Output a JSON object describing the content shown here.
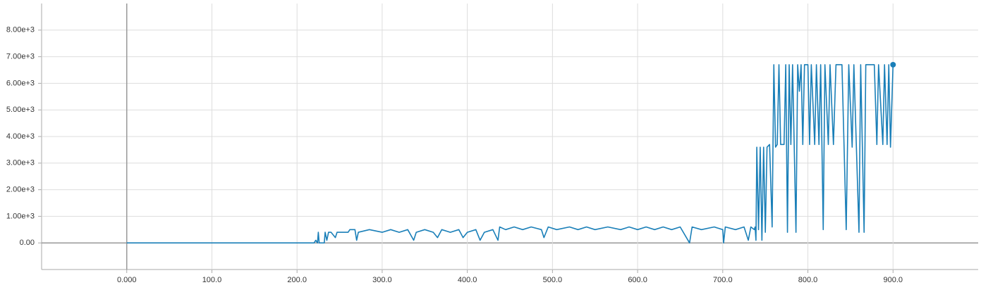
{
  "chart_data": {
    "type": "line",
    "color": "#1a7fb8",
    "grid": true,
    "xlim": [
      -100,
      1000
    ],
    "ylim": [
      -1000,
      9000
    ],
    "xticks": [
      {
        "value": 0,
        "label": "0.000"
      },
      {
        "value": 100,
        "label": "100.0"
      },
      {
        "value": 200,
        "label": "200.0"
      },
      {
        "value": 300,
        "label": "300.0"
      },
      {
        "value": 400,
        "label": "400.0"
      },
      {
        "value": 500,
        "label": "500.0"
      },
      {
        "value": 600,
        "label": "600.0"
      },
      {
        "value": 700,
        "label": "700.0"
      },
      {
        "value": 800,
        "label": "800.0"
      },
      {
        "value": 900,
        "label": "900.0"
      }
    ],
    "yticks": [
      {
        "value": 0,
        "label": "0.00"
      },
      {
        "value": 1000,
        "label": "1.00e+3"
      },
      {
        "value": 2000,
        "label": "2.00e+3"
      },
      {
        "value": 3000,
        "label": "3.00e+3"
      },
      {
        "value": 4000,
        "label": "4.00e+3"
      },
      {
        "value": 5000,
        "label": "5.00e+3"
      },
      {
        "value": 6000,
        "label": "6.00e+3"
      },
      {
        "value": 7000,
        "label": "7.00e+3"
      },
      {
        "value": 8000,
        "label": "8.00e+3"
      }
    ],
    "x": [
      0,
      220,
      222,
      224,
      225,
      226,
      232,
      233,
      235,
      237,
      240,
      245,
      247,
      260,
      262,
      268,
      270,
      272,
      285,
      300,
      310,
      320,
      330,
      337,
      340,
      350,
      360,
      365,
      370,
      380,
      390,
      395,
      400,
      410,
      415,
      420,
      430,
      436,
      438,
      445,
      455,
      465,
      475,
      487,
      490,
      495,
      505,
      520,
      530,
      540,
      550,
      565,
      580,
      590,
      600,
      610,
      620,
      630,
      640,
      650,
      661,
      664,
      675,
      690,
      700,
      701,
      703,
      715,
      725,
      730,
      733,
      737,
      738,
      739,
      740,
      742,
      744,
      746,
      748,
      750,
      752,
      755,
      758,
      760,
      762,
      764,
      766,
      768,
      772,
      774,
      776,
      778,
      780,
      782,
      786,
      788,
      790,
      792,
      794,
      796,
      800,
      802,
      804,
      808,
      810,
      813,
      815,
      818,
      820,
      824,
      826,
      830,
      833,
      840,
      845,
      848,
      852,
      854,
      860,
      862,
      866,
      868,
      878,
      881,
      883,
      888,
      890,
      893,
      895,
      897,
      900
    ],
    "values": [
      0,
      0,
      100,
      0,
      400,
      0,
      0,
      400,
      100,
      400,
      400,
      200,
      400,
      400,
      500,
      500,
      100,
      400,
      500,
      400,
      500,
      400,
      500,
      100,
      400,
      500,
      400,
      200,
      500,
      400,
      500,
      200,
      400,
      500,
      100,
      400,
      500,
      100,
      600,
      500,
      600,
      500,
      600,
      500,
      200,
      600,
      500,
      600,
      500,
      600,
      500,
      600,
      500,
      600,
      500,
      600,
      500,
      600,
      500,
      600,
      0,
      600,
      500,
      600,
      500,
      0,
      600,
      500,
      600,
      100,
      600,
      500,
      600,
      100,
      3600,
      500,
      3600,
      100,
      3600,
      400,
      3600,
      3700,
      600,
      6700,
      3600,
      3700,
      6700,
      3700,
      3700,
      6700,
      400,
      6700,
      3700,
      6700,
      400,
      6700,
      5700,
      6700,
      3700,
      6700,
      6700,
      3700,
      6700,
      3700,
      6700,
      3700,
      6700,
      500,
      6700,
      3700,
      6700,
      3700,
      6700,
      6700,
      500,
      6700,
      3600,
      6700,
      400,
      6700,
      400,
      6700,
      6700,
      3700,
      6700,
      3700,
      6700,
      3700,
      6700,
      3600,
      6700
    ]
  }
}
